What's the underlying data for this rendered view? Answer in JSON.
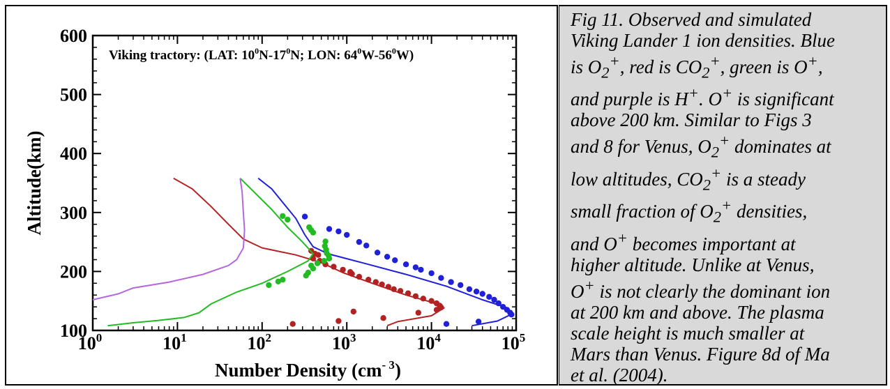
{
  "caption": {
    "line1": "Fig 11. Observed and simulated",
    "line2": "Viking Lander 1 ion densities. Blue",
    "line3_a": "is O",
    "line3_b": "2",
    "line3_c": "+",
    "line3_d": ", red is CO",
    "line3_e": "2",
    "line3_f": "+",
    "line3_g": ", green is O",
    "line3_h": "+",
    "line3_i": ",",
    "line4_a": "and purple is H",
    "line4_b": "+",
    "line4_c": ". O",
    "line4_d": "+",
    "line4_e": " is significant",
    "line5": "above 200 km. Similar to Figs 3",
    "line6_a": "and 8 for Venus, O",
    "line6_b": "2",
    "line6_c": "+",
    "line6_d": " dominates at",
    "line7_a": "low altitudes, CO",
    "line7_b": "2",
    "line7_c": "+",
    "line7_d": " is a steady",
    "line8_a": "small fraction of O",
    "line8_b": "2",
    "line8_c": "+",
    "line8_d": " densities,",
    "line9_a": "and O",
    "line9_b": "+",
    "line9_c": " becomes important at",
    "line10": "higher altitude. Unlike at Venus,",
    "line11_a": "O",
    "line11_b": "+",
    "line11_c": " is not clearly the dominant ion",
    "line12": "at 200 km and above. The plasma",
    "line13": "scale height is much smaller at",
    "line14": "Mars than Venus. Figure 8d of Ma",
    "line15": "et al. (2004)."
  },
  "chart_data": {
    "type": "scatter",
    "x_scale": "log",
    "xlim": [
      1,
      100000
    ],
    "ylim": [
      100,
      600
    ],
    "xlabel_main": "Number Density (cm",
    "xlabel_sup": "- 3",
    "xlabel_close": ")",
    "ylabel": "Altitude(km)",
    "annotation": {
      "prefix": "Viking tractory: (LAT: 10",
      "deg1": "0",
      "mid1": "N-17",
      "deg2": "0",
      "mid2": "N;  LON: 64",
      "deg3": "0",
      "mid3": "W-56",
      "deg4": "0",
      "end": "W)"
    },
    "x_ticks": [
      {
        "value": 1,
        "base": "10",
        "exp": "0"
      },
      {
        "value": 10,
        "base": "10",
        "exp": "1"
      },
      {
        "value": 100,
        "base": "10",
        "exp": "2"
      },
      {
        "value": 1000,
        "base": "10",
        "exp": "3"
      },
      {
        "value": 10000,
        "base": "10",
        "exp": "4"
      },
      {
        "value": 100000,
        "base": "10",
        "exp": "5"
      }
    ],
    "y_ticks": [
      "100",
      "200",
      "300",
      "400",
      "500",
      "600"
    ],
    "series": [
      {
        "color": "#2020d8",
        "simulated": [
          [
            90,
            358
          ],
          [
            130,
            340
          ],
          [
            180,
            315
          ],
          [
            250,
            290
          ],
          [
            320,
            262
          ],
          [
            400,
            242
          ],
          [
            600,
            230
          ],
          [
            1500,
            215
          ],
          [
            5000,
            195
          ],
          [
            15000,
            175
          ],
          [
            40000,
            152
          ],
          [
            80000,
            138
          ],
          [
            90000,
            128
          ],
          [
            60000,
            116
          ],
          [
            30000,
            108
          ]
        ],
        "observed": [
          [
            320,
            293
          ],
          [
            620,
            272
          ],
          [
            800,
            268
          ],
          [
            1000,
            262
          ],
          [
            1400,
            250
          ],
          [
            1700,
            244
          ],
          [
            2300,
            232
          ],
          [
            3000,
            225
          ],
          [
            3700,
            219
          ],
          [
            5000,
            212
          ],
          [
            6500,
            207
          ],
          [
            7500,
            203
          ],
          [
            10000,
            197
          ],
          [
            13000,
            189
          ],
          [
            17000,
            182
          ],
          [
            22000,
            177
          ],
          [
            28000,
            170
          ],
          [
            34000,
            166
          ],
          [
            40000,
            162
          ],
          [
            48000,
            157
          ],
          [
            55000,
            152
          ],
          [
            62000,
            146
          ],
          [
            70000,
            140
          ],
          [
            78000,
            135
          ],
          [
            85000,
            130
          ],
          [
            88000,
            127
          ],
          [
            36000,
            115
          ],
          [
            15000,
            111
          ]
        ]
      },
      {
        "color": "#b22222",
        "simulated": [
          [
            9,
            358
          ],
          [
            15,
            340
          ],
          [
            25,
            310
          ],
          [
            40,
            280
          ],
          [
            60,
            255
          ],
          [
            100,
            240
          ],
          [
            250,
            228
          ],
          [
            500,
            215
          ],
          [
            900,
            198
          ],
          [
            2000,
            180
          ],
          [
            5000,
            160
          ],
          [
            10000,
            148
          ],
          [
            14000,
            138
          ],
          [
            10000,
            125
          ],
          [
            4000,
            115
          ],
          [
            3000,
            108
          ]
        ],
        "observed": [
          [
            380,
            235
          ],
          [
            420,
            230
          ],
          [
            460,
            228
          ],
          [
            400,
            222
          ],
          [
            480,
            218
          ],
          [
            560,
            212
          ],
          [
            700,
            208
          ],
          [
            900,
            203
          ],
          [
            1100,
            199
          ],
          [
            1150,
            196
          ],
          [
            1400,
            191
          ],
          [
            1800,
            186
          ],
          [
            2200,
            182
          ],
          [
            2600,
            178
          ],
          [
            3100,
            174
          ],
          [
            3600,
            170
          ],
          [
            4300,
            167
          ],
          [
            5300,
            163
          ],
          [
            6500,
            158
          ],
          [
            8000,
            154
          ],
          [
            10000,
            150
          ],
          [
            11500,
            146
          ],
          [
            12500,
            142
          ],
          [
            13000,
            139
          ],
          [
            11500,
            135
          ],
          [
            7000,
            130
          ],
          [
            1200,
            132
          ],
          [
            2700,
            121
          ],
          [
            800,
            116
          ],
          [
            230,
            111
          ]
        ]
      },
      {
        "color": "#22bb22",
        "simulated": [
          [
            1.5,
            108
          ],
          [
            3,
            113
          ],
          [
            6,
            117
          ],
          [
            12,
            122
          ],
          [
            18,
            130
          ],
          [
            25,
            145
          ],
          [
            50,
            165
          ],
          [
            100,
            180
          ],
          [
            200,
            200
          ],
          [
            350,
            218
          ],
          [
            400,
            230
          ],
          [
            300,
            250
          ],
          [
            200,
            275
          ],
          [
            130,
            305
          ],
          [
            80,
            335
          ],
          [
            55,
            358
          ]
        ],
        "observed": [
          [
            175,
            294
          ],
          [
            200,
            288
          ],
          [
            360,
            275
          ],
          [
            380,
            270
          ],
          [
            400,
            266
          ],
          [
            560,
            251
          ],
          [
            550,
            243
          ],
          [
            570,
            237
          ],
          [
            580,
            231
          ],
          [
            610,
            227
          ],
          [
            620,
            222
          ],
          [
            540,
            218
          ],
          [
            450,
            214
          ],
          [
            380,
            210
          ],
          [
            400,
            205
          ],
          [
            350,
            198
          ],
          [
            330,
            193
          ],
          [
            175,
            186
          ],
          [
            155,
            183
          ],
          [
            120,
            177
          ]
        ]
      },
      {
        "color": "#b366e0",
        "simulated": [
          [
            1,
            152
          ],
          [
            2,
            162
          ],
          [
            3,
            172
          ],
          [
            8,
            182
          ],
          [
            20,
            195
          ],
          [
            40,
            210
          ],
          [
            50,
            220
          ],
          [
            60,
            240
          ],
          [
            62,
            270
          ],
          [
            60,
            300
          ],
          [
            58,
            335
          ],
          [
            55,
            358
          ]
        ],
        "observed": []
      }
    ]
  }
}
